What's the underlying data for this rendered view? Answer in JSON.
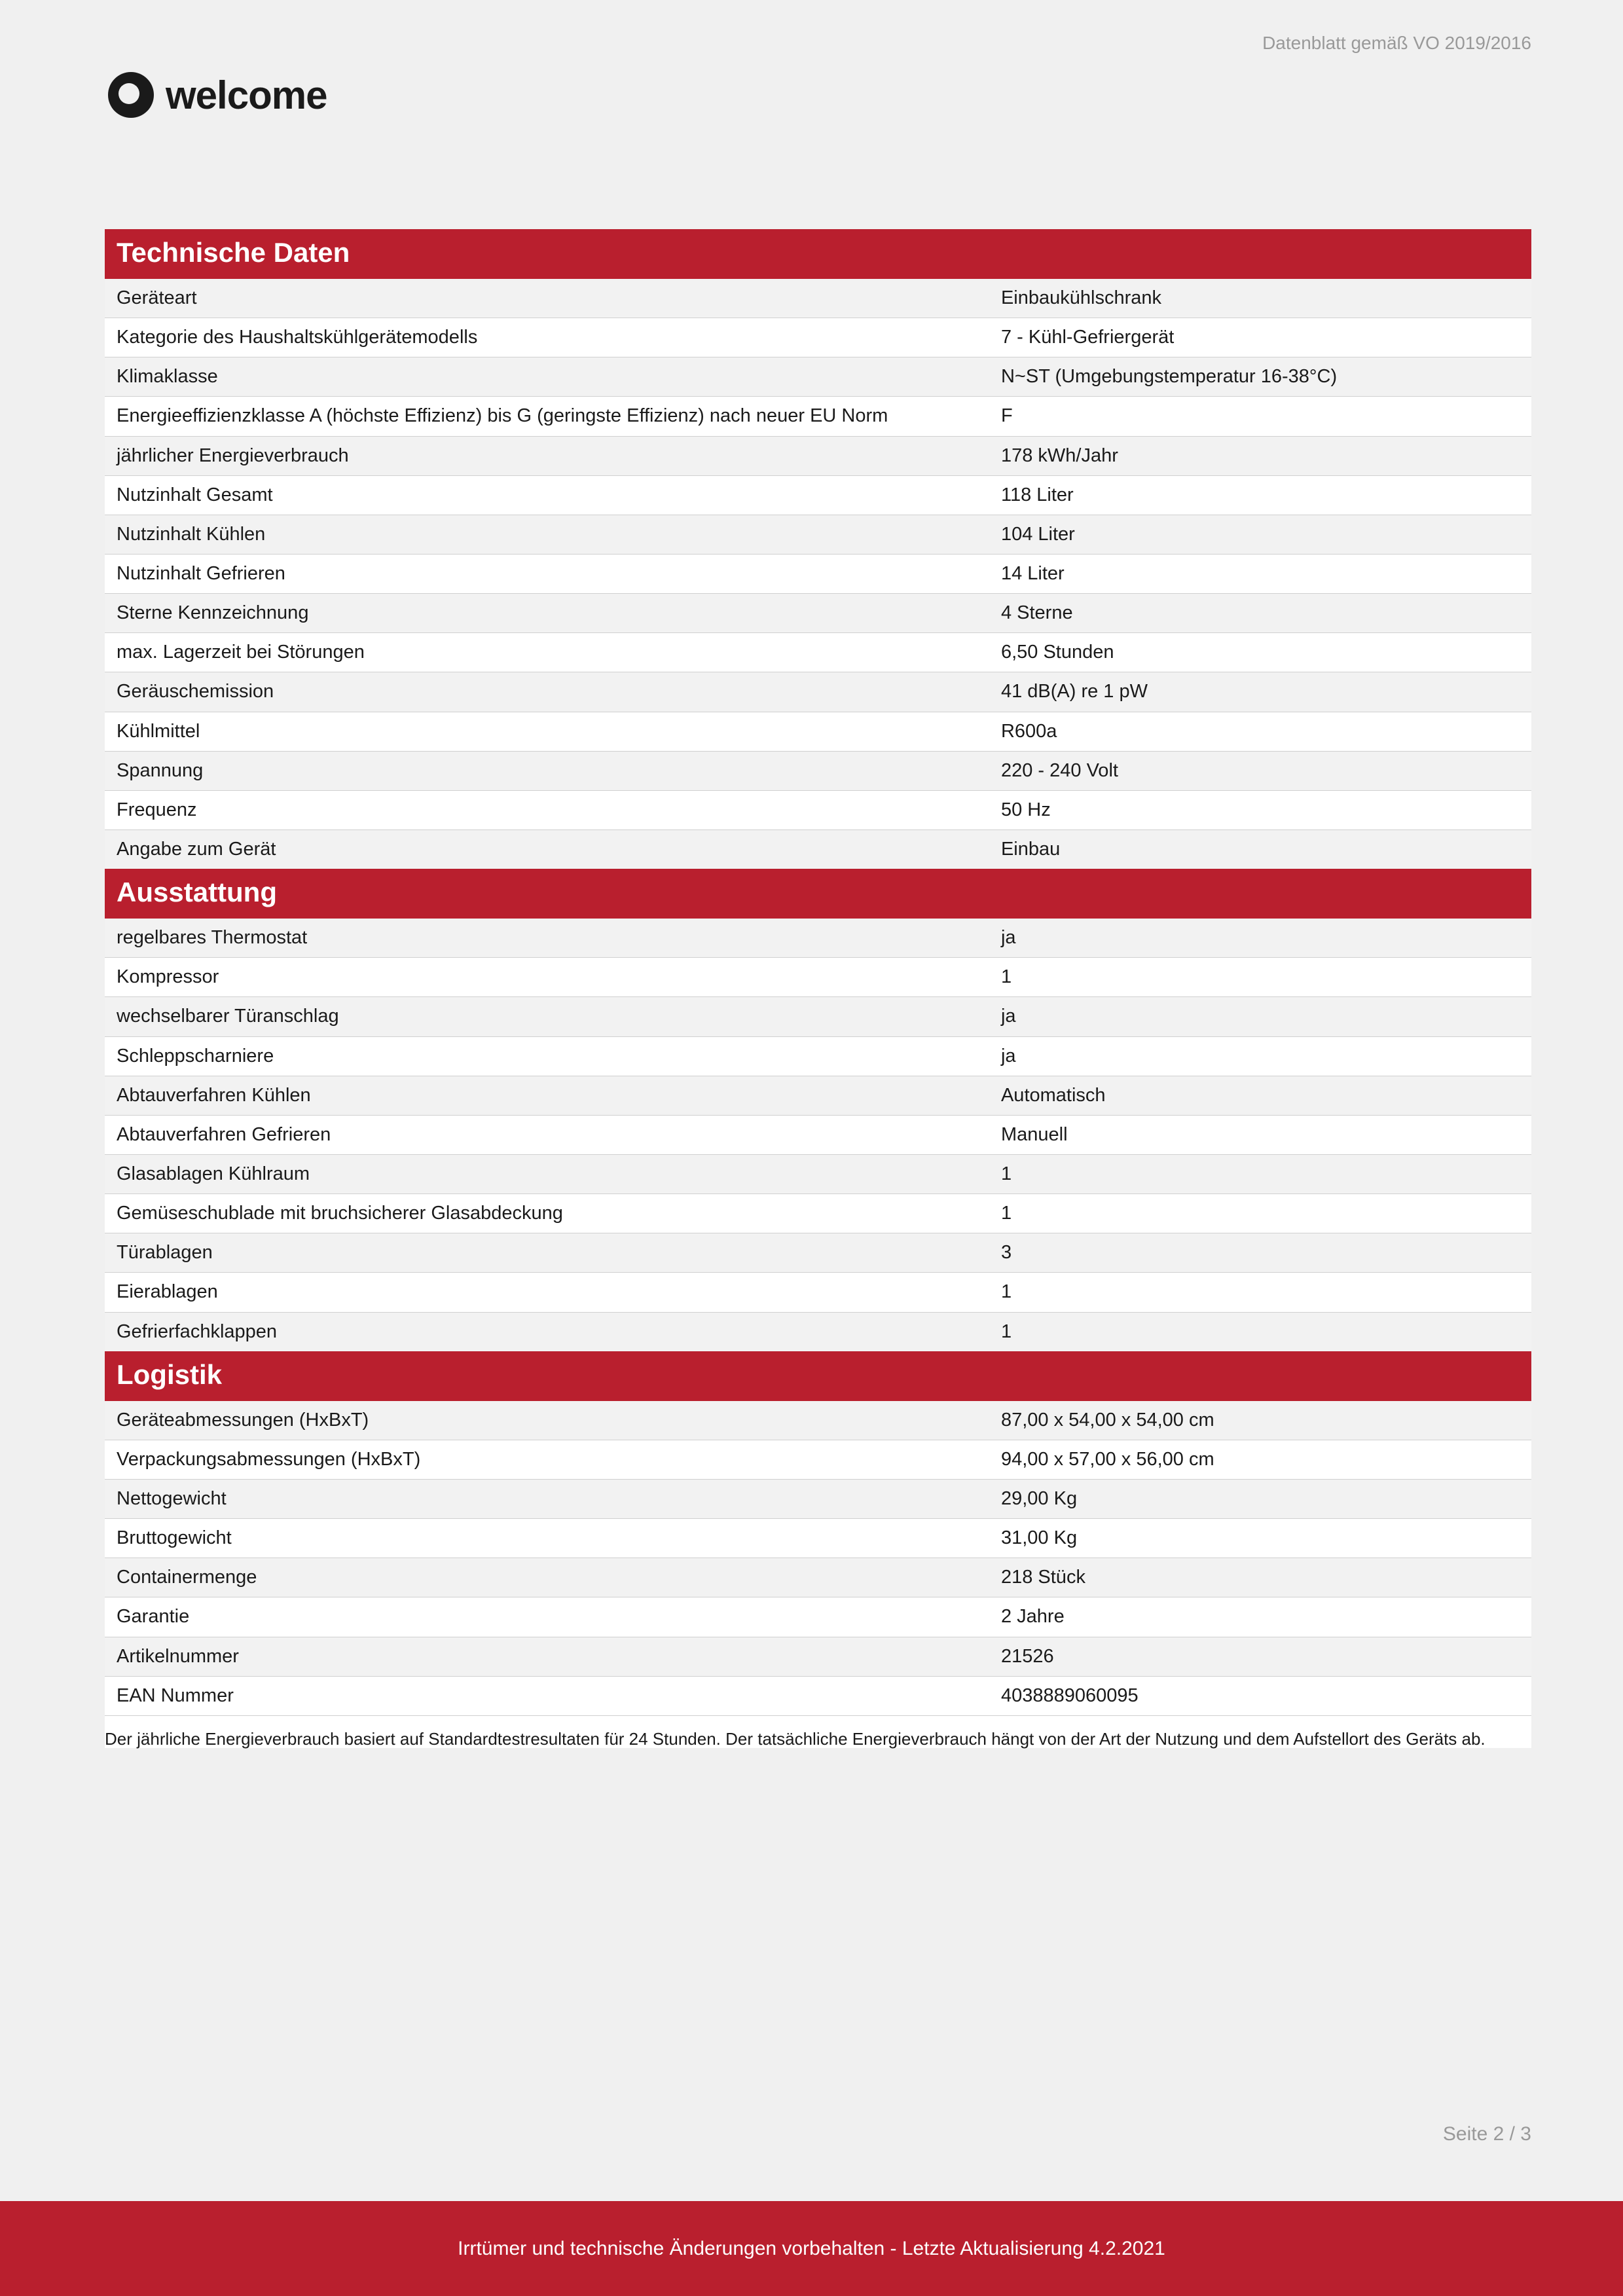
{
  "colors": {
    "accent": "#b91f2e",
    "page_bg": "#f0f0f0",
    "row_alt": "#f2f2f2",
    "border": "#d0d0d0",
    "muted": "#999999",
    "text": "#1a1a1a"
  },
  "header": {
    "note": "Datenblatt gemäß VO 2019/2016",
    "brand": "welcome"
  },
  "sections": [
    {
      "title": "Technische Daten",
      "rows": [
        {
          "label": "Geräteart",
          "value": "Einbaukühlschrank"
        },
        {
          "label": "Kategorie des Haushaltskühlgerätemodells",
          "value": "7 - Kühl-Gefriergerät"
        },
        {
          "label": "Klimaklasse",
          "value": "N~ST (Umgebungstemperatur 16-38°C)"
        },
        {
          "label": "Energieeffizienzklasse A (höchste Effizienz) bis G (geringste Effizienz) nach neuer EU Norm",
          "value": "F"
        },
        {
          "label": "jährlicher Energieverbrauch",
          "value": "178 kWh/Jahr"
        },
        {
          "label": "Nutzinhalt Gesamt",
          "value": "118 Liter"
        },
        {
          "label": "Nutzinhalt Kühlen",
          "value": "104 Liter"
        },
        {
          "label": "Nutzinhalt Gefrieren",
          "value": "14 Liter"
        },
        {
          "label": "Sterne Kennzeichnung",
          "value": "4 Sterne"
        },
        {
          "label": "max. Lagerzeit bei Störungen",
          "value": "6,50 Stunden"
        },
        {
          "label": "Geräuschemission",
          "value": "41 dB(A) re 1 pW"
        },
        {
          "label": "Kühlmittel",
          "value": "R600a"
        },
        {
          "label": "Spannung",
          "value": "220 - 240 Volt"
        },
        {
          "label": "Frequenz",
          "value": "50 Hz"
        },
        {
          "label": "Angabe zum Gerät",
          "value": "Einbau"
        }
      ]
    },
    {
      "title": "Ausstattung",
      "rows": [
        {
          "label": "regelbares Thermostat",
          "value": "ja"
        },
        {
          "label": "Kompressor",
          "value": "1"
        },
        {
          "label": "wechselbarer Türanschlag",
          "value": "ja"
        },
        {
          "label": "Schleppscharniere",
          "value": "ja"
        },
        {
          "label": "Abtauverfahren Kühlen",
          "value": "Automatisch"
        },
        {
          "label": "Abtauverfahren Gefrieren",
          "value": "Manuell"
        },
        {
          "label": "Glasablagen Kühlraum",
          "value": "1"
        },
        {
          "label": "Gemüseschublade mit bruchsicherer Glasabdeckung",
          "value": "1"
        },
        {
          "label": "Türablagen",
          "value": "3"
        },
        {
          "label": "Eierablagen",
          "value": "1"
        },
        {
          "label": "Gefrierfachklappen",
          "value": "1"
        }
      ]
    },
    {
      "title": "Logistik",
      "rows": [
        {
          "label": "Geräteabmessungen (HxBxT)",
          "value": "87,00 x 54,00 x 54,00 cm"
        },
        {
          "label": "Verpackungsabmessungen (HxBxT)",
          "value": "94,00 x 57,00 x 56,00 cm"
        },
        {
          "label": "Nettogewicht",
          "value": "29,00 Kg"
        },
        {
          "label": "Bruttogewicht",
          "value": "31,00 Kg"
        },
        {
          "label": "Containermenge",
          "value": "218 Stück"
        },
        {
          "label": "Garantie",
          "value": "2 Jahre"
        },
        {
          "label": "Artikelnummer",
          "value": "21526"
        },
        {
          "label": "EAN Nummer",
          "value": "4038889060095"
        }
      ]
    }
  ],
  "footnote": "Der jährliche Energieverbrauch basiert auf Standardtestresultaten für 24 Stunden. Der tatsächliche Energieverbrauch hängt von der Art der Nutzung und dem Aufstellort des Geräts ab.",
  "page_indicator": "Seite 2 / 3",
  "footer": "Irrtümer und technische Änderungen vorbehalten - Letzte Aktualisierung 4.2.2021"
}
